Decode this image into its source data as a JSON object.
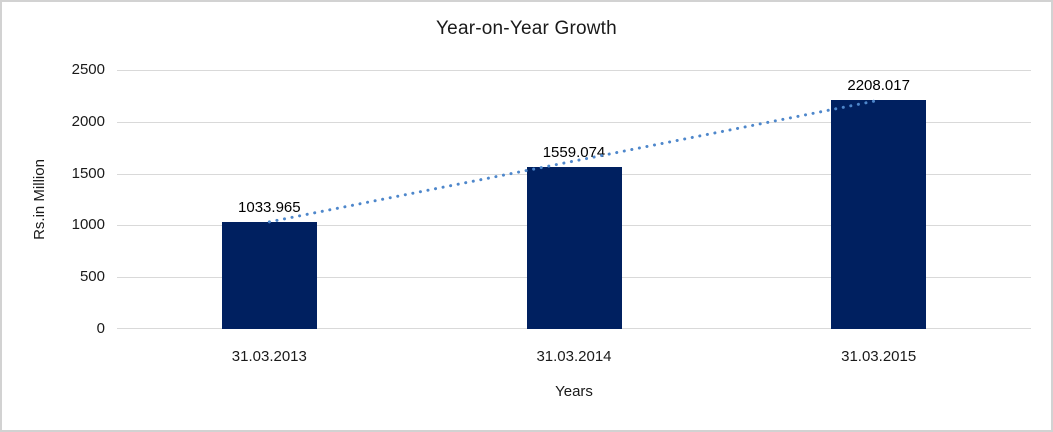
{
  "chart_data": {
    "type": "bar",
    "title": "Year-on-Year Growth",
    "xlabel": "Years",
    "ylabel": "Rs.in Million",
    "categories": [
      "31.03.2013",
      "31.03.2014",
      "31.03.2015"
    ],
    "values": [
      1033.965,
      1559.074,
      2208.017
    ],
    "data_labels": [
      "1033.965",
      "1559.074",
      "2208.017"
    ],
    "ylim": [
      0,
      2500
    ],
    "yticks": [
      0,
      500,
      1000,
      1500,
      2000,
      2500
    ],
    "ytick_labels": [
      "0",
      "500",
      "1000",
      "1500",
      "2000",
      "2500"
    ],
    "grid": true,
    "legend": "none",
    "trendline": {
      "type": "linear",
      "style": "dotted",
      "from_category": "31.03.2013",
      "to_category": "31.03.2015"
    },
    "colors": {
      "bar": "#002060",
      "trendline": "#4e87cb",
      "gridline": "#d9d9d9",
      "text": "#1a1a1a",
      "frame_border": "#d2d2d2",
      "background": "#ffffff"
    }
  }
}
